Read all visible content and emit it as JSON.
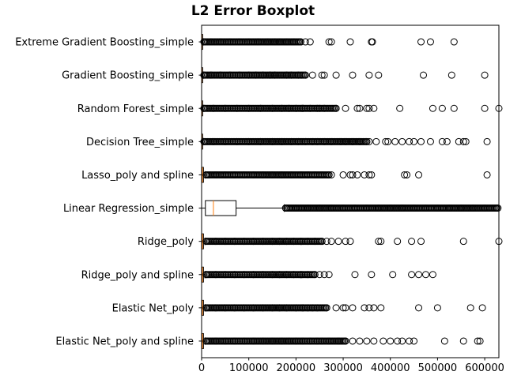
{
  "chart_data": {
    "type": "boxplot",
    "orientation": "horizontal",
    "title": "L2 Error Boxplot",
    "xlabel": "",
    "ylabel": "",
    "xlim": [
      0,
      630000
    ],
    "xticks": [
      0,
      100000,
      200000,
      300000,
      400000,
      500000,
      600000
    ],
    "xtick_labels": [
      "0",
      "100000",
      "200000",
      "300000",
      "400000",
      "500000",
      "600000"
    ],
    "grid": false,
    "colors": {
      "box": "#000000",
      "median": "#ff7f0e",
      "flier": "#000000"
    },
    "categories": [
      "Extreme Gradient Boosting_simple",
      "Gradient Boosting_simple",
      "Random Forest_simple",
      "Decision Tree_simple",
      "Lasso_poly and spline",
      "Linear Regression_simple",
      "Ridge_poly",
      "Ridge_poly and spline",
      "Elastic Net_poly",
      "Elastic Net_poly and spline"
    ],
    "boxes": [
      {
        "name": "Extreme Gradient Boosting_simple",
        "whislo": 0,
        "q1": 200,
        "med": 500,
        "q3": 1200,
        "whishi": 3000,
        "fliers": [
          5000,
          20000,
          40000,
          60000,
          80000,
          100000,
          120000,
          140000,
          155000,
          165000,
          180000,
          195000,
          210000,
          220000,
          230000,
          270000,
          275000,
          315000,
          360000,
          362000,
          465000,
          485000,
          535000
        ]
      },
      {
        "name": "Gradient Boosting_simple",
        "whislo": 0,
        "q1": 200,
        "med": 500,
        "q3": 1200,
        "whishi": 3000,
        "fliers": [
          5000,
          20000,
          40000,
          60000,
          80000,
          100000,
          115000,
          130000,
          145000,
          155000,
          180000,
          190000,
          205000,
          220000,
          235000,
          255000,
          260000,
          285000,
          320000,
          355000,
          375000,
          470000,
          530000,
          600000
        ]
      },
      {
        "name": "Random Forest_simple",
        "whislo": 0,
        "q1": 200,
        "med": 500,
        "q3": 1200,
        "whishi": 3000,
        "fliers": [
          5000,
          25000,
          50000,
          75000,
          100000,
          125000,
          150000,
          170000,
          185000,
          200000,
          215000,
          230000,
          245000,
          250000,
          260000,
          285000,
          305000,
          330000,
          335000,
          350000,
          355000,
          365000,
          420000,
          490000,
          510000,
          535000,
          600000,
          630000
        ]
      },
      {
        "name": "Decision Tree_simple",
        "whislo": 0,
        "q1": 200,
        "med": 500,
        "q3": 1200,
        "whishi": 3000,
        "fliers": [
          5000,
          25000,
          50000,
          75000,
          100000,
          125000,
          150000,
          170000,
          190000,
          205000,
          220000,
          235000,
          245000,
          260000,
          275000,
          295000,
          305000,
          320000,
          335000,
          350000,
          355000,
          370000,
          390000,
          395000,
          410000,
          425000,
          440000,
          450000,
          465000,
          485000,
          510000,
          520000,
          545000,
          555000,
          560000,
          605000
        ]
      },
      {
        "name": "Lasso_poly and spline",
        "whislo": 0,
        "q1": 800,
        "med": 2000,
        "q3": 4000,
        "whishi": 7000,
        "fliers": [
          10000,
          30000,
          50000,
          70000,
          90000,
          110000,
          130000,
          150000,
          170000,
          190000,
          210000,
          225000,
          240000,
          255000,
          270000,
          275000,
          300000,
          315000,
          320000,
          330000,
          345000,
          355000,
          360000,
          430000,
          435000,
          460000,
          605000
        ]
      },
      {
        "name": "Linear Regression_simple",
        "whislo": 0,
        "q1": 8000,
        "med": 25000,
        "q3": 73000,
        "whishi": 175000,
        "fliers": [
          178000,
          200000,
          225000,
          250000,
          275000,
          300000,
          325000,
          350000,
          375000,
          400000,
          425000,
          450000,
          475000,
          500000,
          525000,
          550000,
          575000,
          600000,
          625000
        ]
      },
      {
        "name": "Ridge_poly",
        "whislo": 0,
        "q1": 800,
        "med": 2000,
        "q3": 4000,
        "whishi": 7000,
        "fliers": [
          10000,
          30000,
          50000,
          70000,
          90000,
          110000,
          130000,
          150000,
          165000,
          180000,
          195000,
          210000,
          225000,
          240000,
          255000,
          265000,
          275000,
          290000,
          305000,
          315000,
          375000,
          380000,
          415000,
          445000,
          465000,
          555000,
          630000
        ]
      },
      {
        "name": "Ridge_poly and spline",
        "whislo": 0,
        "q1": 800,
        "med": 2000,
        "q3": 4000,
        "whishi": 7000,
        "fliers": [
          10000,
          30000,
          50000,
          70000,
          90000,
          110000,
          130000,
          150000,
          165000,
          180000,
          195000,
          210000,
          225000,
          240000,
          250000,
          260000,
          270000,
          325000,
          360000,
          405000,
          445000,
          460000,
          475000,
          490000
        ]
      },
      {
        "name": "Elastic Net_poly",
        "whislo": 0,
        "q1": 800,
        "med": 2000,
        "q3": 4000,
        "whishi": 7000,
        "fliers": [
          10000,
          30000,
          50000,
          70000,
          90000,
          110000,
          130000,
          150000,
          165000,
          180000,
          200000,
          215000,
          225000,
          235000,
          245000,
          265000,
          285000,
          300000,
          305000,
          320000,
          345000,
          355000,
          365000,
          380000,
          460000,
          500000,
          570000,
          595000
        ]
      },
      {
        "name": "Elastic Net_poly and spline",
        "whislo": 0,
        "q1": 800,
        "med": 2000,
        "q3": 4000,
        "whishi": 7000,
        "fliers": [
          10000,
          30000,
          50000,
          70000,
          90000,
          110000,
          130000,
          150000,
          170000,
          185000,
          200000,
          215000,
          230000,
          245000,
          255000,
          270000,
          290000,
          305000,
          320000,
          335000,
          350000,
          365000,
          385000,
          400000,
          415000,
          425000,
          440000,
          450000,
          515000,
          555000,
          585000,
          590000
        ]
      }
    ]
  }
}
